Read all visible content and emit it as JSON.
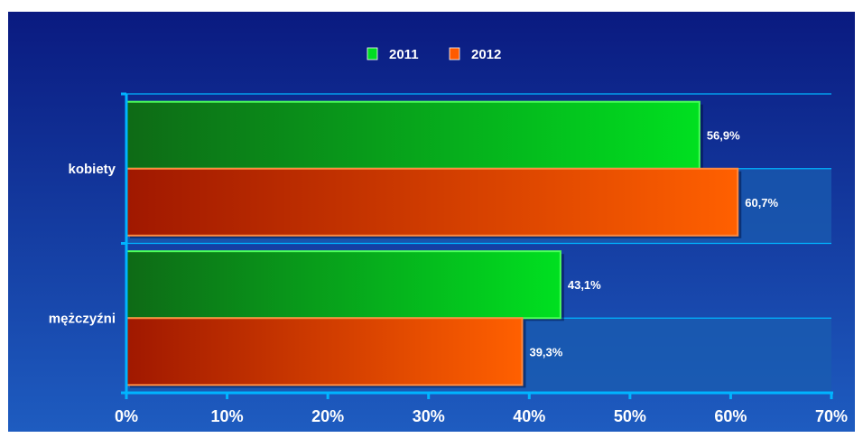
{
  "chart_data": {
    "type": "bar",
    "orientation": "horizontal",
    "categories": [
      "kobiety",
      "mężczyźni"
    ],
    "series": [
      {
        "name": "2011",
        "values": [
          56.9,
          43.1
        ],
        "labels": [
          "56,9%",
          "43,1%"
        ]
      },
      {
        "name": "2012",
        "values": [
          60.7,
          39.3
        ],
        "labels": [
          "60,7%",
          "39,3%"
        ]
      }
    ],
    "xlim": [
      0,
      70
    ],
    "xticks": [
      "0%",
      "10%",
      "20%",
      "30%",
      "40%",
      "50%",
      "60%",
      "70%"
    ],
    "legend_position": "top-center",
    "grid": true
  },
  "colors": {
    "background_top": "#0a1a80",
    "background_bottom": "#1e5cc0",
    "axis": "#00b4ff",
    "series_2011": "#00dd22",
    "series_2012": "#ff5a00",
    "text": "#ffffff"
  }
}
